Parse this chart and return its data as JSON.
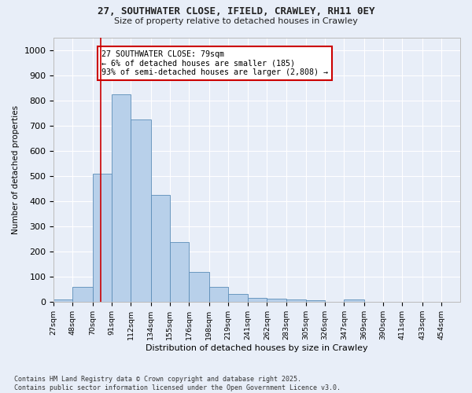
{
  "title_line1": "27, SOUTHWATER CLOSE, IFIELD, CRAWLEY, RH11 0EY",
  "title_line2": "Size of property relative to detached houses in Crawley",
  "xlabel": "Distribution of detached houses by size in Crawley",
  "ylabel": "Number of detached properties",
  "bar_values": [
    10,
    57,
    508,
    825,
    725,
    425,
    238,
    117,
    57,
    30,
    15,
    12,
    8,
    5,
    0,
    7,
    0,
    0,
    0,
    0
  ],
  "bar_labels": [
    "27sqm",
    "48sqm",
    "70sqm",
    "91sqm",
    "112sqm",
    "134sqm",
    "155sqm",
    "176sqm",
    "198sqm",
    "219sqm",
    "241sqm",
    "262sqm",
    "283sqm",
    "305sqm",
    "326sqm",
    "347sqm",
    "369sqm",
    "390sqm",
    "411sqm",
    "433sqm",
    "454sqm"
  ],
  "bin_edges": [
    27,
    48,
    70,
    91,
    112,
    134,
    155,
    176,
    198,
    219,
    241,
    262,
    283,
    305,
    326,
    347,
    369,
    390,
    411,
    433,
    454
  ],
  "bar_color": "#b8d0ea",
  "bar_edge_color": "#5b8db8",
  "vline_x": 79,
  "vline_color": "#cc0000",
  "annotation_text": "27 SOUTHWATER CLOSE: 79sqm\n← 6% of detached houses are smaller (185)\n93% of semi-detached houses are larger (2,808) →",
  "annotation_box_color": "#ffffff",
  "annotation_box_edge": "#cc0000",
  "ylim": [
    0,
    1050
  ],
  "yticks": [
    0,
    100,
    200,
    300,
    400,
    500,
    600,
    700,
    800,
    900,
    1000
  ],
  "footer_text": "Contains HM Land Registry data © Crown copyright and database right 2025.\nContains public sector information licensed under the Open Government Licence v3.0.",
  "background_color": "#e8eef8",
  "grid_color": "#ffffff"
}
